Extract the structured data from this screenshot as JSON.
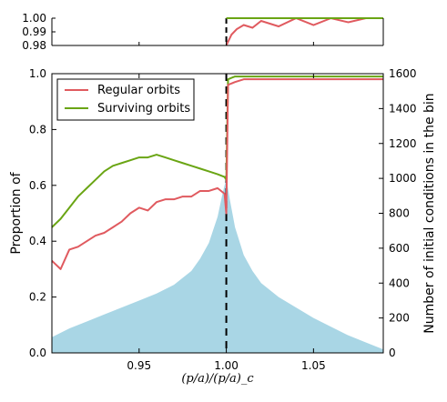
{
  "chart_data": [
    {
      "type": "line",
      "panel": "inset",
      "xlim": [
        0.9,
        1.09
      ],
      "ylim": [
        0.98,
        1.0
      ],
      "y_ticks": [
        "1.00",
        "0.99",
        "0.98"
      ],
      "colors": {
        "regular": "#e05a5f",
        "surviving": "#6aa514",
        "critical": "#000000"
      },
      "series": [
        {
          "name": "Regular orbits",
          "x": [
            1.0,
            1.003,
            1.006,
            1.01,
            1.015,
            1.02,
            1.03,
            1.04,
            1.05,
            1.06,
            1.07,
            1.08
          ],
          "values": [
            0.98,
            0.988,
            0.992,
            0.995,
            0.993,
            0.998,
            0.994,
            1.0,
            0.995,
            1.0,
            0.997,
            1.0
          ]
        },
        {
          "name": "Surviving orbits",
          "x": [
            1.0,
            1.09
          ],
          "values": [
            1.0,
            1.0
          ]
        }
      ],
      "critical_x": 1.0
    },
    {
      "type": "line",
      "panel": "main",
      "xlabel": "(p/a)/(p/a)_c",
      "ylabel_left": "Proportion of",
      "ylabel_right": "Number of initial conditions in the bin",
      "xlim": [
        0.9,
        1.09
      ],
      "ylim_left": [
        0.0,
        1.0
      ],
      "ylim_right": [
        0,
        1600
      ],
      "x_ticks": [
        "0.95",
        "1.00",
        "1.05"
      ],
      "y_ticks_left": [
        "0.0",
        "0.2",
        "0.4",
        "0.6",
        "0.8",
        "1.0"
      ],
      "y_ticks_right": [
        "0",
        "200",
        "400",
        "600",
        "800",
        "1000",
        "1200",
        "1400",
        "1600"
      ],
      "legend_location": "top-left",
      "colors": {
        "regular": "#e05a5f",
        "surviving": "#6aa514",
        "histogram": "#a9d6e5"
      },
      "series": [
        {
          "name": "Regular orbits",
          "x": [
            0.9,
            0.905,
            0.91,
            0.915,
            0.92,
            0.925,
            0.93,
            0.935,
            0.94,
            0.945,
            0.95,
            0.955,
            0.96,
            0.965,
            0.97,
            0.975,
            0.98,
            0.985,
            0.99,
            0.995,
            0.999,
            1.0,
            1.001,
            1.005,
            1.01,
            1.02,
            1.04,
            1.06,
            1.08,
            1.09
          ],
          "values": [
            0.33,
            0.3,
            0.37,
            0.38,
            0.4,
            0.42,
            0.43,
            0.45,
            0.47,
            0.5,
            0.52,
            0.51,
            0.54,
            0.55,
            0.55,
            0.56,
            0.56,
            0.58,
            0.58,
            0.59,
            0.57,
            0.5,
            0.96,
            0.97,
            0.98,
            0.98,
            0.98,
            0.98,
            0.98,
            0.98
          ]
        },
        {
          "name": "Surviving orbits",
          "x": [
            0.9,
            0.905,
            0.91,
            0.915,
            0.92,
            0.925,
            0.93,
            0.935,
            0.94,
            0.945,
            0.95,
            0.955,
            0.96,
            0.965,
            0.97,
            0.975,
            0.98,
            0.985,
            0.99,
            0.995,
            0.999,
            1.0,
            1.001,
            1.005,
            1.01,
            1.09
          ],
          "values": [
            0.45,
            0.48,
            0.52,
            0.56,
            0.59,
            0.62,
            0.65,
            0.67,
            0.68,
            0.69,
            0.7,
            0.7,
            0.71,
            0.7,
            0.69,
            0.68,
            0.67,
            0.66,
            0.65,
            0.64,
            0.63,
            0.62,
            0.98,
            0.99,
            0.99,
            0.99
          ]
        }
      ],
      "histogram": {
        "x": [
          0.9,
          0.91,
          0.92,
          0.93,
          0.94,
          0.95,
          0.96,
          0.97,
          0.98,
          0.985,
          0.99,
          0.995,
          0.998,
          1.0,
          1.002,
          1.005,
          1.01,
          1.015,
          1.02,
          1.03,
          1.04,
          1.05,
          1.06,
          1.07,
          1.08,
          1.09
        ],
        "values": [
          90,
          140,
          180,
          220,
          260,
          300,
          340,
          390,
          470,
          540,
          630,
          780,
          920,
          1000,
          880,
          720,
          560,
          470,
          400,
          320,
          260,
          200,
          150,
          100,
          60,
          20
        ]
      },
      "critical_x": 1.0
    }
  ]
}
